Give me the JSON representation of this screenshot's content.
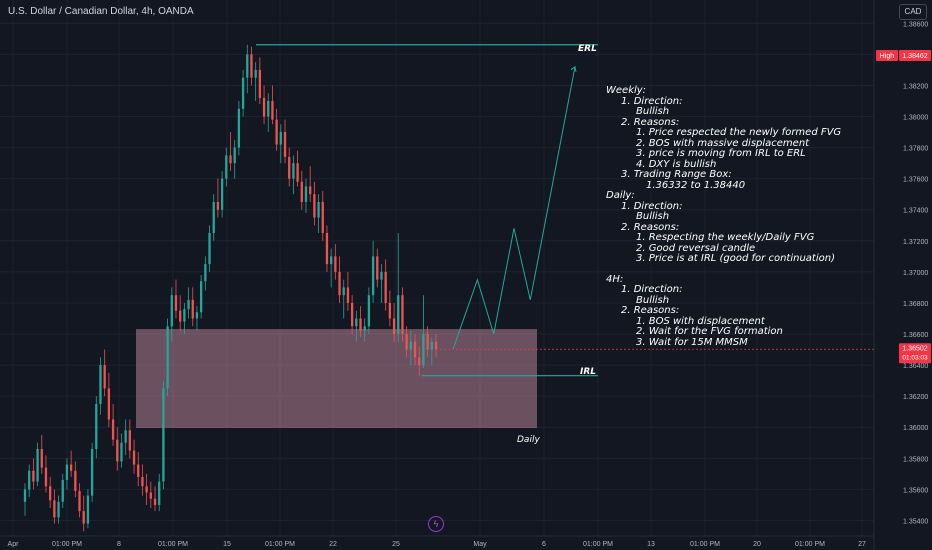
{
  "header": {
    "symbol_title": "U.S. Dollar / Canadian Dollar, 4h, OANDA",
    "currency_button": "CAD"
  },
  "price_axis": {
    "ticks": [
      "1.38600",
      "1.38400",
      "1.38200",
      "1.38000",
      "1.37800",
      "1.37600",
      "1.37400",
      "1.37200",
      "1.37000",
      "1.36800",
      "1.36600",
      "1.36400",
      "1.36200",
      "1.36000",
      "1.35800",
      "1.35600",
      "1.35400"
    ],
    "high_label": "High",
    "high_value": "1.38462",
    "current_price": "1.36502",
    "countdown": "01:03:03"
  },
  "time_axis": {
    "ticks": [
      "Apr",
      "01:00 PM",
      "8",
      "01:00 PM",
      "15",
      "01:00 PM",
      "22",
      "25",
      "May",
      "6",
      "01:00 PM",
      "13",
      "01:00 PM",
      "20",
      "01:00 PM",
      "27"
    ]
  },
  "annotations": {
    "erl_label": "ERL",
    "irl_label": "IRL",
    "zone_label": "Daily"
  },
  "colors": {
    "background": "#131722",
    "bull": "#26a69a",
    "bear": "#ef5350",
    "zone_fill": "#c48a9e",
    "level_line": "#26a69a",
    "current_price_badge": "#f23645"
  },
  "analysis_notes": [
    {
      "level": 0,
      "text": "Weekly:"
    },
    {
      "level": 1,
      "text": "1. Direction:"
    },
    {
      "level": 2,
      "text": "Bullish"
    },
    {
      "level": 1,
      "text": "2. Reasons:"
    },
    {
      "level": 2,
      "text": "1. Price respected the newly formed FVG"
    },
    {
      "level": 2,
      "text": "2. BOS with massive displacement"
    },
    {
      "level": 2,
      "text": "3. price is moving from IRL to ERL"
    },
    {
      "level": 2,
      "text": "4. DXY is bullish"
    },
    {
      "level": 1,
      "text": "3. Trading Range Box:"
    },
    {
      "level": 3,
      "text": "1.36332 to 1.38440"
    },
    {
      "level": 0,
      "text": "Daily:"
    },
    {
      "level": 1,
      "text": "1. Direction:"
    },
    {
      "level": 2,
      "text": "Bullish"
    },
    {
      "level": 1,
      "text": "2. Reasons:"
    },
    {
      "level": 2,
      "text": "1. Respecting the weekly/Daily FVG"
    },
    {
      "level": 2,
      "text": "2. Good reversal candle"
    },
    {
      "level": 2,
      "text": "3. Price is at IRL (good for continuation)"
    },
    {
      "level": -1,
      "text": ""
    },
    {
      "level": 0,
      "text": "4H:"
    },
    {
      "level": 1,
      "text": "1. Direction:"
    },
    {
      "level": 2,
      "text": "Bullish"
    },
    {
      "level": 1,
      "text": "2. Reasons:"
    },
    {
      "level": 2,
      "text": "1. BOS with displacement"
    },
    {
      "level": 2,
      "text": "2. Wait for the FVG formation"
    },
    {
      "level": 2,
      "text": "3. Wait for 15M MMSM"
    }
  ],
  "chart_data": {
    "type": "candlestick",
    "symbol": "USDCAD",
    "timeframe": "4h",
    "ylim": [
      1.353,
      1.3875
    ],
    "levels": {
      "erl": 1.38462,
      "irl": 1.36332,
      "zone_top": 1.36632,
      "zone_bottom": 1.35995
    },
    "projection_path": [
      [
        0,
        1.36502
      ],
      [
        6,
        1.3695
      ],
      [
        10,
        1.366
      ],
      [
        15,
        1.3728
      ],
      [
        19,
        1.3682
      ],
      [
        30,
        1.3832
      ]
    ],
    "candles": [
      [
        1.3552,
        1.3564,
        1.3543,
        1.356
      ],
      [
        1.356,
        1.3576,
        1.3555,
        1.3572
      ],
      [
        1.3572,
        1.358,
        1.356,
        1.3565
      ],
      [
        1.3565,
        1.359,
        1.3562,
        1.3586
      ],
      [
        1.3586,
        1.3595,
        1.357,
        1.3574
      ],
      [
        1.3574,
        1.3582,
        1.3558,
        1.3562
      ],
      [
        1.3562,
        1.3568,
        1.3548,
        1.3553
      ],
      [
        1.3553,
        1.356,
        1.3538,
        1.3542
      ],
      [
        1.3542,
        1.3556,
        1.3538,
        1.3552
      ],
      [
        1.3552,
        1.357,
        1.3548,
        1.3566
      ],
      [
        1.3566,
        1.358,
        1.356,
        1.3576
      ],
      [
        1.3576,
        1.3585,
        1.3568,
        1.3572
      ],
      [
        1.3572,
        1.3578,
        1.3555,
        1.3559
      ],
      [
        1.3559,
        1.3564,
        1.3542,
        1.3546
      ],
      [
        1.3546,
        1.3556,
        1.3533,
        1.3538
      ],
      [
        1.3538,
        1.356,
        1.3535,
        1.3556
      ],
      [
        1.3556,
        1.359,
        1.3552,
        1.3586
      ],
      [
        1.3586,
        1.362,
        1.358,
        1.3615
      ],
      [
        1.3615,
        1.3645,
        1.3608,
        1.364
      ],
      [
        1.364,
        1.365,
        1.362,
        1.3625
      ],
      [
        1.3625,
        1.3635,
        1.36,
        1.3605
      ],
      [
        1.3605,
        1.3615,
        1.3588,
        1.3592
      ],
      [
        1.3592,
        1.36,
        1.3572,
        1.3578
      ],
      [
        1.3578,
        1.3596,
        1.3574,
        1.359
      ],
      [
        1.359,
        1.3605,
        1.3582,
        1.3598
      ],
      [
        1.3598,
        1.3605,
        1.358,
        1.3585
      ],
      [
        1.3585,
        1.3592,
        1.357,
        1.3576
      ],
      [
        1.3576,
        1.3584,
        1.3562,
        1.3568
      ],
      [
        1.3568,
        1.3576,
        1.3556,
        1.3562
      ],
      [
        1.3562,
        1.357,
        1.355,
        1.3558
      ],
      [
        1.3558,
        1.3565,
        1.3548,
        1.3554
      ],
      [
        1.3554,
        1.3562,
        1.3546,
        1.355
      ],
      [
        1.355,
        1.357,
        1.3546,
        1.3565
      ],
      [
        1.3565,
        1.363,
        1.356,
        1.3625
      ],
      [
        1.3625,
        1.367,
        1.362,
        1.3665
      ],
      [
        1.3665,
        1.369,
        1.3655,
        1.3685
      ],
      [
        1.3685,
        1.3695,
        1.367,
        1.3675
      ],
      [
        1.3675,
        1.3685,
        1.3662,
        1.3668
      ],
      [
        1.3668,
        1.368,
        1.366,
        1.3676
      ],
      [
        1.3676,
        1.369,
        1.367,
        1.3682
      ],
      [
        1.3682,
        1.369,
        1.3665,
        1.367
      ],
      [
        1.367,
        1.3678,
        1.3662,
        1.3674
      ],
      [
        1.3674,
        1.3698,
        1.367,
        1.3694
      ],
      [
        1.3694,
        1.371,
        1.3688,
        1.3705
      ],
      [
        1.3705,
        1.373,
        1.37,
        1.3725
      ],
      [
        1.3725,
        1.375,
        1.372,
        1.3745
      ],
      [
        1.3745,
        1.376,
        1.3735,
        1.374
      ],
      [
        1.374,
        1.3765,
        1.3735,
        1.376
      ],
      [
        1.376,
        1.378,
        1.3755,
        1.3775
      ],
      [
        1.3775,
        1.379,
        1.3765,
        1.377
      ],
      [
        1.377,
        1.3785,
        1.376,
        1.378
      ],
      [
        1.378,
        1.381,
        1.3775,
        1.3805
      ],
      [
        1.3805,
        1.383,
        1.38,
        1.3825
      ],
      [
        1.3825,
        1.38462,
        1.3815,
        1.384
      ],
      [
        1.384,
        1.3845,
        1.382,
        1.3825
      ],
      [
        1.3825,
        1.3835,
        1.381,
        1.383
      ],
      [
        1.383,
        1.3838,
        1.3808,
        1.3812
      ],
      [
        1.3812,
        1.382,
        1.3795,
        1.38
      ],
      [
        1.38,
        1.3815,
        1.379,
        1.381
      ],
      [
        1.381,
        1.382,
        1.3795,
        1.3798
      ],
      [
        1.3798,
        1.3805,
        1.3778,
        1.3782
      ],
      [
        1.3782,
        1.3795,
        1.377,
        1.379
      ],
      [
        1.379,
        1.3798,
        1.377,
        1.3774
      ],
      [
        1.3774,
        1.378,
        1.3755,
        1.376
      ],
      [
        1.376,
        1.3775,
        1.375,
        1.377
      ],
      [
        1.377,
        1.3778,
        1.3755,
        1.3758
      ],
      [
        1.3758,
        1.3765,
        1.374,
        1.3745
      ],
      [
        1.3745,
        1.376,
        1.3738,
        1.3755
      ],
      [
        1.3755,
        1.3768,
        1.3745,
        1.375
      ],
      [
        1.375,
        1.3758,
        1.373,
        1.3735
      ],
      [
        1.3735,
        1.375,
        1.3725,
        1.3745
      ],
      [
        1.3745,
        1.3752,
        1.372,
        1.3725
      ],
      [
        1.3725,
        1.373,
        1.37,
        1.3705
      ],
      [
        1.3705,
        1.3715,
        1.369,
        1.371
      ],
      [
        1.371,
        1.3718,
        1.3695,
        1.37
      ],
      [
        1.37,
        1.371,
        1.368,
        1.3685
      ],
      [
        1.3685,
        1.3695,
        1.367,
        1.369
      ],
      [
        1.369,
        1.37,
        1.3675,
        1.368
      ],
      [
        1.368,
        1.3685,
        1.366,
        1.3665
      ],
      [
        1.3665,
        1.3675,
        1.3655,
        1.367
      ],
      [
        1.367,
        1.3678,
        1.3658,
        1.3662
      ],
      [
        1.3662,
        1.367,
        1.3655,
        1.3665
      ],
      [
        1.3665,
        1.369,
        1.366,
        1.3685
      ],
      [
        1.3685,
        1.372,
        1.368,
        1.371
      ],
      [
        1.371,
        1.3715,
        1.369,
        1.3695
      ],
      [
        1.3695,
        1.3705,
        1.368,
        1.37
      ],
      [
        1.37,
        1.3708,
        1.3675,
        1.368
      ],
      [
        1.368,
        1.3688,
        1.3665,
        1.367
      ],
      [
        1.367,
        1.368,
        1.3655,
        1.366
      ],
      [
        1.366,
        1.3725,
        1.3655,
        1.3685
      ],
      [
        1.3685,
        1.369,
        1.3655,
        1.366
      ],
      [
        1.366,
        1.3665,
        1.3645,
        1.365
      ],
      [
        1.365,
        1.3662,
        1.364,
        1.3655
      ],
      [
        1.3655,
        1.366,
        1.364,
        1.3645
      ],
      [
        1.3645,
        1.3652,
        1.36332,
        1.364
      ],
      [
        1.364,
        1.3685,
        1.3638,
        1.366
      ],
      [
        1.366,
        1.3665,
        1.3645,
        1.365
      ],
      [
        1.365,
        1.3658,
        1.364,
        1.3655
      ],
      [
        1.3655,
        1.366,
        1.3645,
        1.36502
      ]
    ]
  }
}
